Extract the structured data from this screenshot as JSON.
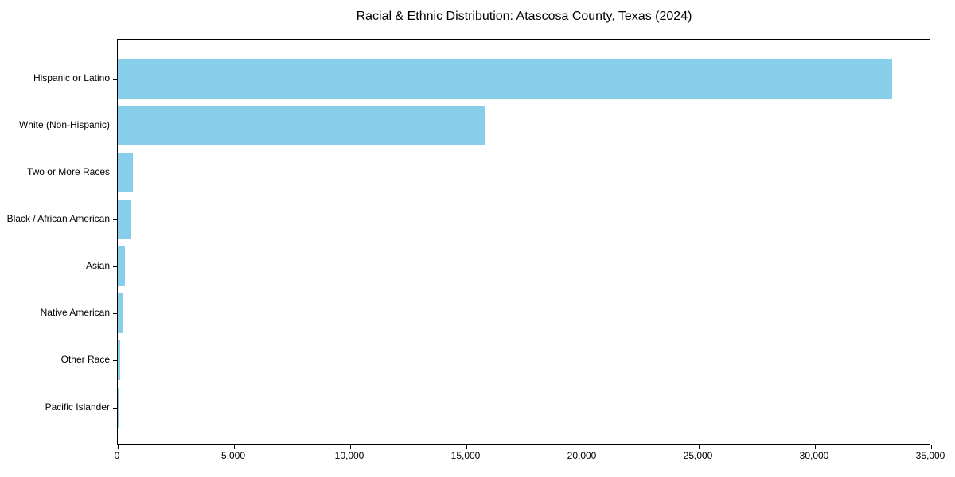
{
  "chart_data": {
    "type": "bar",
    "orientation": "horizontal",
    "title": "Racial & Ethnic Distribution: Atascosa County, Texas (2024)",
    "categories": [
      "Hispanic or Latino",
      "White (Non-Hispanic)",
      "Two or More Races",
      "Black / African American",
      "Asian",
      "Native American",
      "Other Race",
      "Pacific Islander"
    ],
    "values": [
      33320,
      15780,
      640,
      570,
      300,
      190,
      110,
      25
    ],
    "xlabel": "",
    "ylabel": "",
    "xlim": [
      0,
      35000
    ],
    "x_ticks": [
      0,
      5000,
      10000,
      15000,
      20000,
      25000,
      30000,
      35000
    ],
    "x_tick_labels": [
      "0",
      "5,000",
      "10,000",
      "15,000",
      "20,000",
      "25,000",
      "30,000",
      "35,000"
    ],
    "bar_color": "#87CEEB",
    "background_color": "#ffffff",
    "axis_color": "#000000",
    "grid": false,
    "legend": null
  }
}
